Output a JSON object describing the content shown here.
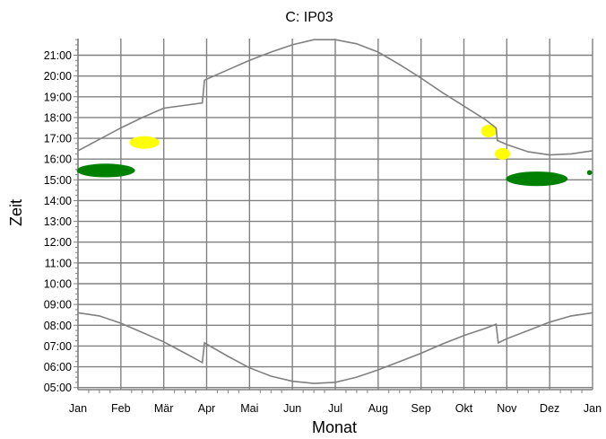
{
  "chart_data": {
    "type": "line",
    "title": "C: IP03",
    "xlabel": "Monat",
    "ylabel": "Zeit",
    "x_ticks": [
      "Jan",
      "Feb",
      "Mär",
      "Apr",
      "Mai",
      "Jun",
      "Jul",
      "Aug",
      "Sep",
      "Okt",
      "Nov",
      "Dez",
      "Jan"
    ],
    "y_ticks": [
      "05:00",
      "06:00",
      "07:00",
      "08:00",
      "09:00",
      "10:00",
      "11:00",
      "12:00",
      "13:00",
      "14:00",
      "15:00",
      "16:00",
      "17:00",
      "18:00",
      "19:00",
      "20:00",
      "21:00"
    ],
    "xlim": [
      0,
      12
    ],
    "ylim": [
      4.9,
      21.8
    ],
    "grid": true,
    "series": [
      {
        "role": "sunset",
        "color": "#808080",
        "points": [
          [
            0,
            16.4
          ],
          [
            0.5,
            16.95
          ],
          [
            1,
            17.5
          ],
          [
            1.5,
            18.0
          ],
          [
            2,
            18.45
          ],
          [
            2.9,
            18.7
          ],
          [
            2.95,
            19.8
          ],
          [
            3.5,
            20.3
          ],
          [
            4,
            20.75
          ],
          [
            4.5,
            21.15
          ],
          [
            5,
            21.5
          ],
          [
            5.5,
            21.75
          ],
          [
            6,
            21.75
          ],
          [
            6.5,
            21.55
          ],
          [
            7,
            21.15
          ],
          [
            7.5,
            20.55
          ],
          [
            8,
            19.9
          ],
          [
            8.5,
            19.2
          ],
          [
            9,
            18.55
          ],
          [
            9.5,
            17.9
          ],
          [
            9.75,
            17.5
          ],
          [
            9.78,
            16.9
          ],
          [
            10,
            16.7
          ],
          [
            10.5,
            16.35
          ],
          [
            11,
            16.2
          ],
          [
            11.5,
            16.25
          ],
          [
            12,
            16.4
          ]
        ]
      },
      {
        "role": "sunrise",
        "color": "#808080",
        "points": [
          [
            0,
            8.6
          ],
          [
            0.5,
            8.45
          ],
          [
            1,
            8.1
          ],
          [
            1.5,
            7.65
          ],
          [
            2,
            7.2
          ],
          [
            2.5,
            6.65
          ],
          [
            2.9,
            6.2
          ],
          [
            2.95,
            7.15
          ],
          [
            3.5,
            6.5
          ],
          [
            4,
            5.95
          ],
          [
            4.5,
            5.55
          ],
          [
            5,
            5.3
          ],
          [
            5.5,
            5.2
          ],
          [
            6,
            5.25
          ],
          [
            6.5,
            5.5
          ],
          [
            7,
            5.85
          ],
          [
            7.5,
            6.25
          ],
          [
            8,
            6.65
          ],
          [
            8.5,
            7.1
          ],
          [
            9,
            7.5
          ],
          [
            9.5,
            7.85
          ],
          [
            9.75,
            8.05
          ],
          [
            9.8,
            7.15
          ],
          [
            10,
            7.35
          ],
          [
            10.5,
            7.75
          ],
          [
            11,
            8.15
          ],
          [
            11.5,
            8.45
          ],
          [
            12,
            8.6
          ]
        ]
      }
    ],
    "shaded_regions": [
      {
        "color": "#008000",
        "center": [
          0.65,
          15.45
        ],
        "rx": 0.68,
        "ry": 0.33
      },
      {
        "color": "#008000",
        "center": [
          10.7,
          15.05
        ],
        "rx": 0.72,
        "ry": 0.35
      },
      {
        "color": "#008000",
        "center": [
          11.93,
          15.35
        ],
        "rx": 0.06,
        "ry": 0.12
      },
      {
        "color": "#ffff00",
        "center": [
          1.55,
          16.8
        ],
        "rx": 0.35,
        "ry": 0.3
      },
      {
        "color": "#ffff00",
        "center": [
          9.58,
          17.35
        ],
        "rx": 0.18,
        "ry": 0.3
      },
      {
        "color": "#ffff00",
        "center": [
          9.9,
          16.25
        ],
        "rx": 0.18,
        "ry": 0.28
      }
    ]
  }
}
